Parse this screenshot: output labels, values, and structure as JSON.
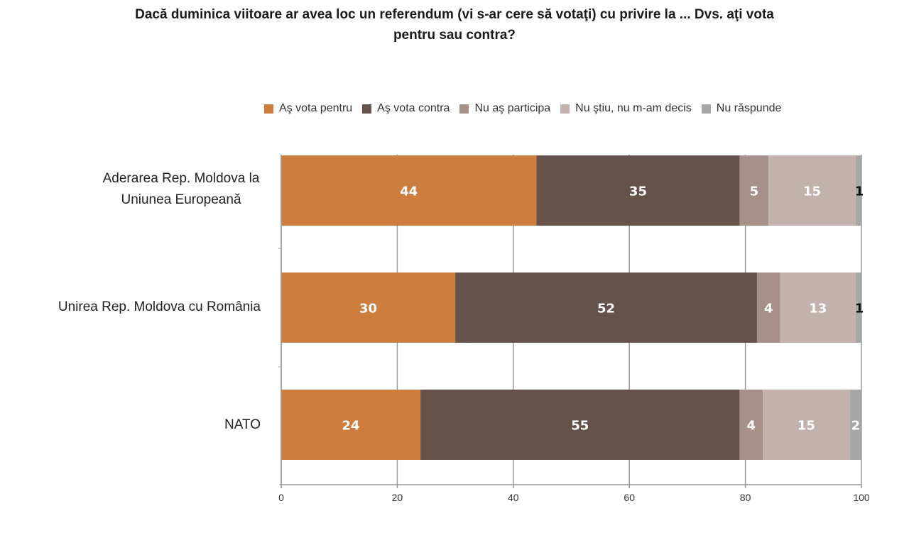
{
  "chart_data": {
    "type": "bar",
    "orientation": "horizontal",
    "stacked": true,
    "title": "Dacă duminica viitoare ar avea loc un referendum (vi s-ar cere să votaţi) cu privire la ... Dvs. aţi vota pentru sau contra?",
    "title_lines": [
      "Dacă duminica viitoare ar avea loc un referendum (vi s-ar cere să votaţi) cu privire la ... Dvs. aţi vota",
      "pentru sau contra?"
    ],
    "xlabel": "",
    "ylabel": "",
    "xlim": [
      0,
      100
    ],
    "x_ticks": [
      0,
      20,
      40,
      60,
      80,
      100
    ],
    "x_tick_labels": [
      "0",
      "20",
      "40",
      "60",
      "80",
      "100"
    ],
    "grid": true,
    "legend_position": "top",
    "categories": [
      "Aderarea Rep. Moldova la Uniunea Europeană",
      "Unirea Rep. Moldova cu România",
      "NATO"
    ],
    "category_label_lines": [
      [
        "Aderarea Rep. Moldova la",
        "Uniunea Europeană"
      ],
      [
        "Unirea Rep. Moldova cu România"
      ],
      [
        "NATO"
      ]
    ],
    "series": [
      {
        "name": "Aş vota pentru",
        "color": "#CD7E3E",
        "values": [
          44,
          30,
          24
        ]
      },
      {
        "name": "Aş vota contra",
        "color": "#65524A",
        "values": [
          35,
          52,
          55
        ]
      },
      {
        "name": "Nu aş participa",
        "color": "#A79089",
        "values": [
          5,
          4,
          4
        ]
      },
      {
        "name": "Nu ştiu, nu m-am decis",
        "color": "#C3B2AC",
        "values": [
          15,
          13,
          15
        ]
      },
      {
        "name": "Nu răspunde",
        "color": "#A7A7A7",
        "values": [
          1,
          1,
          2
        ]
      }
    ]
  }
}
